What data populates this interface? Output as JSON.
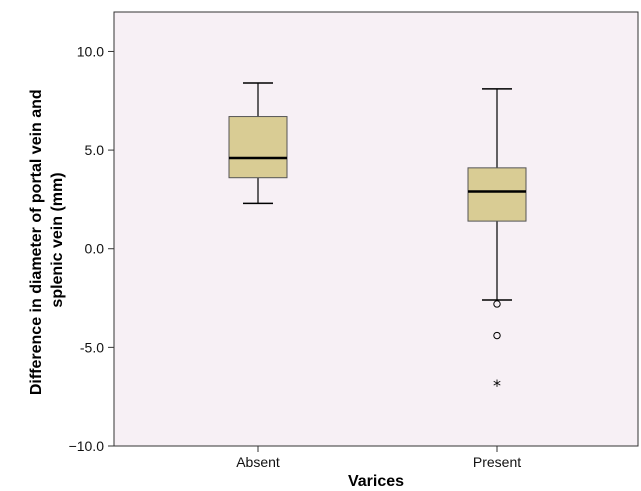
{
  "chart_data": {
    "type": "box",
    "xlabel": "Varices",
    "ylabel_lines": [
      "Difference in diameter of portal vein and",
      "splenic vein (mm)"
    ],
    "ylim": [
      -10.0,
      12.0
    ],
    "yticks": [
      {
        "value": 10.0,
        "label": "10.0"
      },
      {
        "value": 5.0,
        "label": "5.0"
      },
      {
        "value": 0.0,
        "label": "0.0"
      },
      {
        "value": -5.0,
        "label": "-5.0"
      },
      {
        "value": -10.0,
        "label": "−10.0"
      }
    ],
    "categories": [
      "Absent",
      "Present"
    ],
    "boxes": [
      {
        "category": "Absent",
        "whisker_low": 2.3,
        "q1": 3.6,
        "median": 4.6,
        "q3": 6.7,
        "whisker_high": 8.4,
        "outliers": [],
        "extremes": []
      },
      {
        "category": "Present",
        "whisker_low": -2.6,
        "q1": 1.4,
        "median": 2.9,
        "q3": 4.1,
        "whisker_high": 8.1,
        "outliers": [
          -2.8,
          -4.4
        ],
        "extremes": [
          -6.8
        ]
      }
    ],
    "colors": {
      "plot_background": "#f7f0f5",
      "box_fill": "#d9cc94",
      "line": "#000000"
    },
    "grid": false,
    "legend": "none"
  }
}
